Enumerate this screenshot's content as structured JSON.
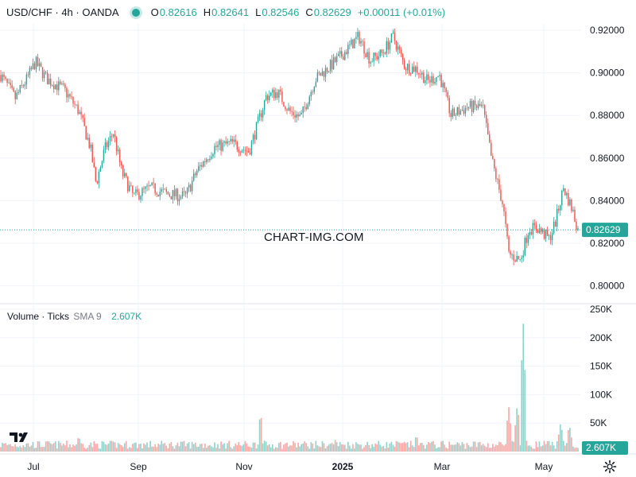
{
  "legend": {
    "symbol": "USD/CHF · 4h · OANDA",
    "open_label": "O",
    "open": "0.82616",
    "high_label": "H",
    "high": "0.82641",
    "low_label": "L",
    "low": "0.82546",
    "close_label": "C",
    "close": "0.82629",
    "change": "+0.00011 (+0.01%)"
  },
  "volume_legend": {
    "title": "Volume · Ticks",
    "sma": "SMA 9",
    "value": "2.607K"
  },
  "watermark": "CHART-IMG.COM",
  "colors": {
    "up": "#26a69a",
    "down": "#ef5350",
    "grid": "#f0f3fa",
    "text": "#131722",
    "price_label_bg": "#26a69a"
  },
  "chart_data": {
    "type": "candlestick",
    "instrument": "USD/CHF",
    "timeframe": "4h",
    "source": "OANDA",
    "y_ticks": [
      "0.92000",
      "0.90000",
      "0.88000",
      "0.86000",
      "0.84000",
      "0.82000",
      "0.80000"
    ],
    "y_values": [
      0.92,
      0.9,
      0.88,
      0.86,
      0.84,
      0.82,
      0.8
    ],
    "ylim": [
      0.796,
      0.9245
    ],
    "x_ticks": [
      "Jul",
      "Sep",
      "Nov",
      "2025",
      "Mar",
      "May"
    ],
    "bold_x_tick": "2025",
    "last_price": "0.82629",
    "last_price_value": 0.82629,
    "close_path": [
      [
        0,
        0.899
      ],
      [
        0.025,
        0.888
      ],
      [
        0.045,
        0.897
      ],
      [
        0.06,
        0.905
      ],
      [
        0.08,
        0.897
      ],
      [
        0.11,
        0.892
      ],
      [
        0.135,
        0.882
      ],
      [
        0.155,
        0.865
      ],
      [
        0.165,
        0.848
      ],
      [
        0.18,
        0.864
      ],
      [
        0.195,
        0.872
      ],
      [
        0.21,
        0.853
      ],
      [
        0.23,
        0.842
      ],
      [
        0.26,
        0.846
      ],
      [
        0.29,
        0.843
      ],
      [
        0.32,
        0.842
      ],
      [
        0.34,
        0.854
      ],
      [
        0.37,
        0.865
      ],
      [
        0.4,
        0.867
      ],
      [
        0.43,
        0.863
      ],
      [
        0.46,
        0.889
      ],
      [
        0.48,
        0.891
      ],
      [
        0.5,
        0.882
      ],
      [
        0.52,
        0.879
      ],
      [
        0.545,
        0.897
      ],
      [
        0.57,
        0.903
      ],
      [
        0.59,
        0.908
      ],
      [
        0.62,
        0.917
      ],
      [
        0.64,
        0.906
      ],
      [
        0.66,
        0.909
      ],
      [
        0.68,
        0.917
      ],
      [
        0.7,
        0.903
      ],
      [
        0.72,
        0.902
      ],
      [
        0.74,
        0.896
      ],
      [
        0.76,
        0.899
      ],
      [
        0.78,
        0.88
      ],
      [
        0.81,
        0.884
      ],
      [
        0.835,
        0.884
      ],
      [
        0.85,
        0.86
      ],
      [
        0.87,
        0.838
      ],
      [
        0.88,
        0.815
      ],
      [
        0.9,
        0.812
      ],
      [
        0.915,
        0.827
      ],
      [
        0.93,
        0.827
      ],
      [
        0.95,
        0.822
      ],
      [
        0.96,
        0.829
      ],
      [
        0.975,
        0.846
      ],
      [
        0.99,
        0.836
      ],
      [
        1.0,
        0.8263
      ]
    ],
    "volume_ticks": [
      "250K",
      "200K",
      "150K",
      "100K",
      "50K"
    ],
    "volume_values": [
      250000,
      200000,
      150000,
      100000,
      50000
    ],
    "volume_spikes": [
      [
        0.135,
        28000
      ],
      [
        0.45,
        70000
      ],
      [
        0.58,
        22000
      ],
      [
        0.72,
        30000
      ],
      [
        0.88,
        80000
      ],
      [
        0.895,
        85000
      ],
      [
        0.905,
        233000
      ],
      [
        0.97,
        52000
      ],
      [
        0.985,
        48000
      ]
    ],
    "volume_baseline": 12000,
    "sma_last": "2.607K"
  }
}
